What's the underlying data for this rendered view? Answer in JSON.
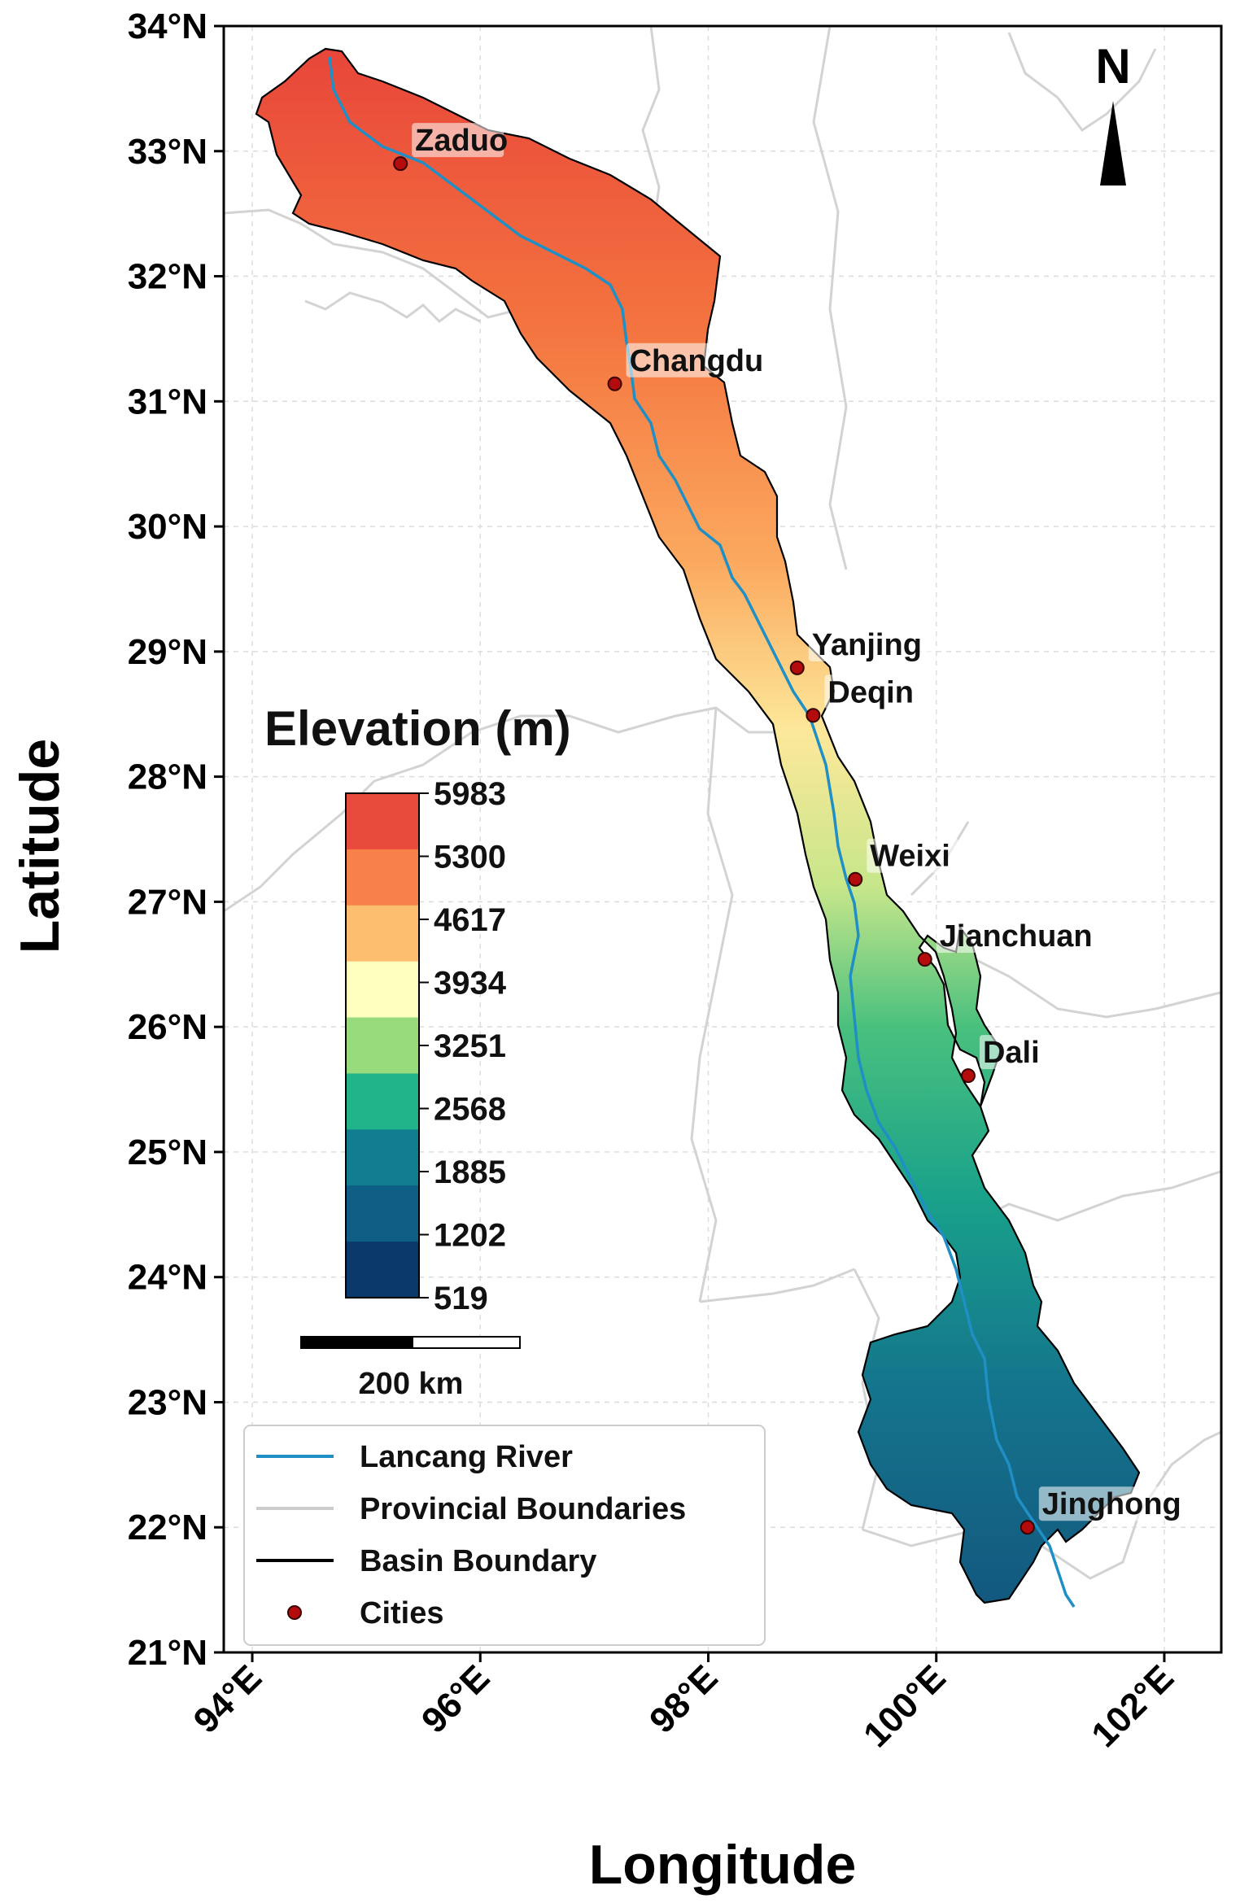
{
  "map": {
    "xlabel": "Longitude",
    "ylabel": "Latitude",
    "lon_range": [
      93.75,
      102.5
    ],
    "lat_range": [
      21,
      34
    ],
    "x_ticks": [
      "94°E",
      "96°E",
      "98°E",
      "100°E",
      "102°E"
    ],
    "y_ticks": [
      "21°N",
      "22°N",
      "23°N",
      "24°N",
      "25°N",
      "26°N",
      "27°N",
      "28°N",
      "29°N",
      "30°N",
      "31°N",
      "32°N",
      "33°N",
      "34°N"
    ],
    "grid": true
  },
  "cities": [
    {
      "name": "Zaduo",
      "lon": 95.3,
      "lat": 32.9
    },
    {
      "name": "Changdu",
      "lon": 97.18,
      "lat": 31.14
    },
    {
      "name": "Yanjing",
      "lon": 98.78,
      "lat": 28.87
    },
    {
      "name": "Deqin",
      "lon": 98.92,
      "lat": 28.49
    },
    {
      "name": "Weixi",
      "lon": 99.29,
      "lat": 27.18
    },
    {
      "name": "Jianchuan",
      "lon": 99.9,
      "lat": 26.54
    },
    {
      "name": "Dali",
      "lon": 100.28,
      "lat": 25.61
    },
    {
      "name": "Jinghong",
      "lon": 100.8,
      "lat": 22.0
    }
  ],
  "colorbar": {
    "title": "Elevation (m)",
    "ticks": [
      "5983",
      "5300",
      "4617",
      "3934",
      "3251",
      "2568",
      "1885",
      "1202",
      "519"
    ],
    "colors": [
      "#e84a3c",
      "#f88149",
      "#fdbf6f",
      "#ffffc0",
      "#98db7c",
      "#21b389",
      "#117d8e",
      "#0e5e86",
      "#0a3a6b"
    ]
  },
  "scale_bar": {
    "label": "200 km"
  },
  "north_arrow": {
    "label": "N"
  },
  "legend": {
    "items": [
      {
        "label": "Lancang River",
        "color": "#1f8fc5",
        "kind": "line"
      },
      {
        "label": "Provincial Boundaries",
        "color": "#cccccc",
        "kind": "line"
      },
      {
        "label": "Basin Boundary",
        "color": "#000000",
        "kind": "line"
      },
      {
        "label": "Cities",
        "color": "#b40c0c",
        "kind": "marker"
      }
    ]
  }
}
